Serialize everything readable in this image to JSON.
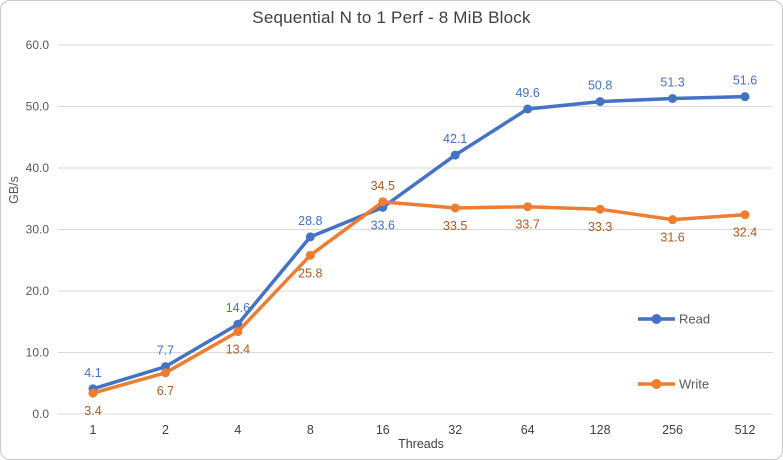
{
  "chart": {
    "title": "Sequential N to 1 Perf - 8 MiB Block",
    "y_axis_label": "GB/s",
    "x_axis_label": "Threads",
    "legend": {
      "items": [
        {
          "label": "Read"
        },
        {
          "label": "Write"
        }
      ]
    }
  },
  "chart_data": {
    "type": "line",
    "title": "Sequential N to 1 Perf - 8 MiB Block",
    "xlabel": "Threads",
    "ylabel": "GB/s",
    "categories": [
      "1",
      "2",
      "4",
      "8",
      "16",
      "32",
      "64",
      "128",
      "256",
      "512"
    ],
    "series": [
      {
        "name": "Read",
        "color": "#4472C4",
        "label_color": "#4472C4",
        "values": [
          4.1,
          7.7,
          14.6,
          28.8,
          33.6,
          42.1,
          49.6,
          50.8,
          51.3,
          51.6
        ],
        "label_positions": [
          "above",
          "above",
          "above",
          "above",
          "below",
          "above",
          "above",
          "above",
          "above",
          "above"
        ]
      },
      {
        "name": "Write",
        "color": "#ED7D31",
        "label_color": "#AE5A21",
        "values": [
          3.4,
          6.7,
          13.4,
          25.8,
          34.5,
          33.5,
          33.7,
          33.3,
          31.6,
          32.4
        ],
        "label_positions": [
          "below",
          "below",
          "below",
          "below",
          "above",
          "below",
          "below",
          "below",
          "below",
          "below"
        ]
      }
    ],
    "ylim": [
      0,
      60
    ],
    "y_tick_step": 10,
    "y_tick_labels": [
      "0.0",
      "10.0",
      "20.0",
      "30.0",
      "40.0",
      "50.0",
      "60.0"
    ],
    "grid": true,
    "legend_position": "right-inside",
    "colors": {
      "gridline": "#D9D9D9",
      "y_tick_text": "#595959",
      "x_tick_text": "#404040",
      "title_text": "#404040",
      "legend_text": "#595959",
      "border": "#C9C9C9",
      "background": "#FFFFFF"
    }
  }
}
